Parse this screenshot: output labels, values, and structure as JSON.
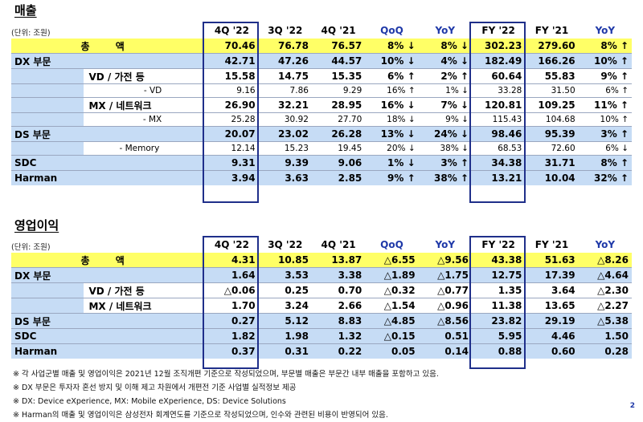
{
  "sales": {
    "title": "매출",
    "unit": "(단위: 조원)",
    "headers": [
      "4Q '22",
      "3Q '22",
      "4Q '21",
      "QoQ",
      "YoY",
      "FY '22",
      "FY '21",
      "YoY"
    ],
    "total": {
      "label": "총 액",
      "vals": [
        "70.46",
        "76.78",
        "76.57",
        "8% ↓",
        "8% ↓",
        "302.23",
        "279.60",
        "8% ↑"
      ]
    },
    "rows": [
      {
        "kind": "main",
        "label": "DX 부문",
        "vals": [
          "42.71",
          "47.26",
          "44.57",
          "10% ↓",
          "4% ↓",
          "182.49",
          "166.26",
          "10% ↑"
        ]
      },
      {
        "kind": "sub",
        "label": "VD / 가전 등",
        "vals": [
          "15.58",
          "14.75",
          "15.35",
          "6% ↑",
          "2% ↑",
          "60.64",
          "55.83",
          "9% ↑"
        ]
      },
      {
        "kind": "subsub",
        "label": "- VD",
        "vals": [
          "9.16",
          "7.86",
          "9.29",
          "16% ↑",
          "1% ↓",
          "33.28",
          "31.50",
          "6% ↑"
        ]
      },
      {
        "kind": "sub",
        "label": "MX / 네트워크",
        "vals": [
          "26.90",
          "32.21",
          "28.95",
          "16% ↓",
          "7% ↓",
          "120.81",
          "109.25",
          "11% ↑"
        ]
      },
      {
        "kind": "subsub",
        "label": "- MX",
        "vals": [
          "25.28",
          "30.92",
          "27.70",
          "18% ↓",
          "9% ↓",
          "115.43",
          "104.68",
          "10% ↑"
        ]
      },
      {
        "kind": "main",
        "label": "DS 부문",
        "vals": [
          "20.07",
          "23.02",
          "26.28",
          "13% ↓",
          "24% ↓",
          "98.46",
          "95.39",
          "3% ↑"
        ]
      },
      {
        "kind": "subsub2",
        "label": "- Memory",
        "vals": [
          "12.14",
          "15.23",
          "19.45",
          "20% ↓",
          "38% ↓",
          "68.53",
          "72.60",
          "6% ↓"
        ]
      },
      {
        "kind": "main",
        "label": "SDC",
        "vals": [
          "9.31",
          "9.39",
          "9.06",
          "1% ↓",
          "3% ↑",
          "34.38",
          "31.71",
          "8% ↑"
        ]
      },
      {
        "kind": "main",
        "label": "Harman",
        "vals": [
          "3.94",
          "3.63",
          "2.85",
          "9% ↑",
          "38% ↑",
          "13.21",
          "10.04",
          "32% ↑"
        ]
      }
    ]
  },
  "op": {
    "title": "영업이익",
    "unit": "(단위: 조원)",
    "headers": [
      "4Q '22",
      "3Q '22",
      "4Q '21",
      "QoQ",
      "YoY",
      "FY '22",
      "FY '21",
      "YoY"
    ],
    "total": {
      "label": "총 액",
      "vals": [
        "4.31",
        "10.85",
        "13.87",
        "△6.55",
        "△9.56",
        "43.38",
        "51.63",
        "△8.26"
      ]
    },
    "rows": [
      {
        "kind": "main",
        "label": "DX 부문",
        "vals": [
          "1.64",
          "3.53",
          "3.38",
          "△1.89",
          "△1.75",
          "12.75",
          "17.39",
          "△4.64"
        ]
      },
      {
        "kind": "sub",
        "label": "VD / 가전 등",
        "vals": [
          "△0.06",
          "0.25",
          "0.70",
          "△0.32",
          "△0.77",
          "1.35",
          "3.64",
          "△2.30"
        ]
      },
      {
        "kind": "sub",
        "label": "MX / 네트워크",
        "vals": [
          "1.70",
          "3.24",
          "2.66",
          "△1.54",
          "△0.96",
          "11.38",
          "13.65",
          "△2.27"
        ]
      },
      {
        "kind": "main",
        "label": "DS 부문",
        "vals": [
          "0.27",
          "5.12",
          "8.83",
          "△4.85",
          "△8.56",
          "23.82",
          "29.19",
          "△5.38"
        ]
      },
      {
        "kind": "main",
        "label": "SDC",
        "vals": [
          "1.82",
          "1.98",
          "1.32",
          "△0.15",
          "0.51",
          "5.95",
          "4.46",
          "1.50"
        ]
      },
      {
        "kind": "main",
        "label": "Harman",
        "vals": [
          "0.37",
          "0.31",
          "0.22",
          "0.05",
          "0.14",
          "0.88",
          "0.60",
          "0.28"
        ]
      }
    ]
  },
  "notes": [
    "※ 각 사업군별 매출 및 영업이익은 2021년 12월 조직개편 기준으로 작성되었으며, 부문별 매출은 부문간 내부 매출을 포함하고 있음.",
    "※ DX 부문은 투자자 혼선 방지 및 이해 제고 차원에서 개편전 기준 사업별 실적정보 제공",
    "※ DX: Device eXperience, MX: Mobile eXperience, DS: Device Solutions",
    "※ Harman의 매출 및 영업이익은 삼성전자 회계연도를 기준으로 작성되었으며, 인수와 관련된 비용이 반영되어 있음."
  ],
  "page_number": "2",
  "colors": {
    "accent": "#1f39a8",
    "total_bg": "#ffff66",
    "row_bg": "#c6dcf5",
    "box": "#1f2f8a"
  }
}
